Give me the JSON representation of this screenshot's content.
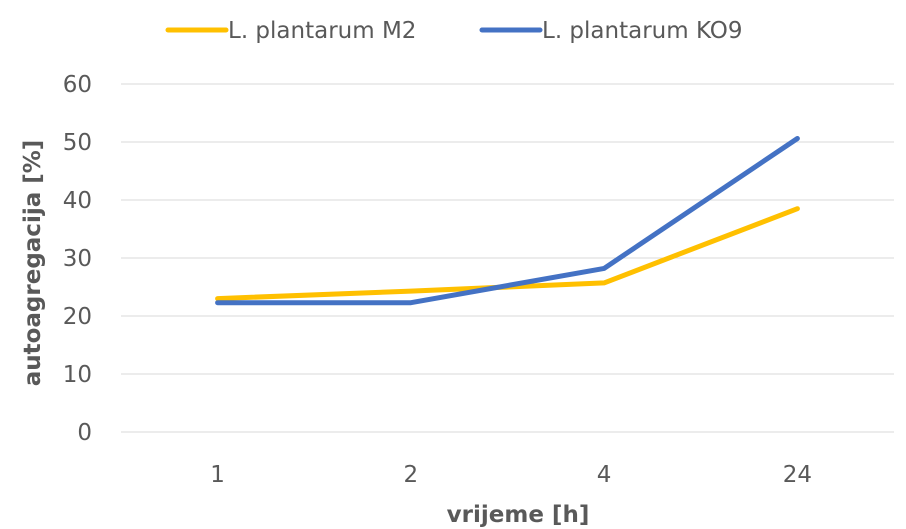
{
  "chart_data": {
    "type": "line",
    "categories": [
      "1",
      "2",
      "4",
      "24"
    ],
    "series": [
      {
        "name": "L. plantarum M2",
        "values": [
          23.0,
          24.3,
          25.7,
          38.5
        ],
        "color": "#FFC000"
      },
      {
        "name": "L. plantarum KO9",
        "values": [
          22.3,
          22.3,
          28.2,
          50.6
        ],
        "color": "#4472C4"
      }
    ],
    "xlabel": "vrijeme [h]",
    "ylabel": "autoagregacija [%]",
    "ylim": [
      0,
      60
    ],
    "yticks": [
      0,
      10,
      20,
      30,
      40,
      50,
      60
    ],
    "grid": true,
    "legend_position": "top"
  }
}
